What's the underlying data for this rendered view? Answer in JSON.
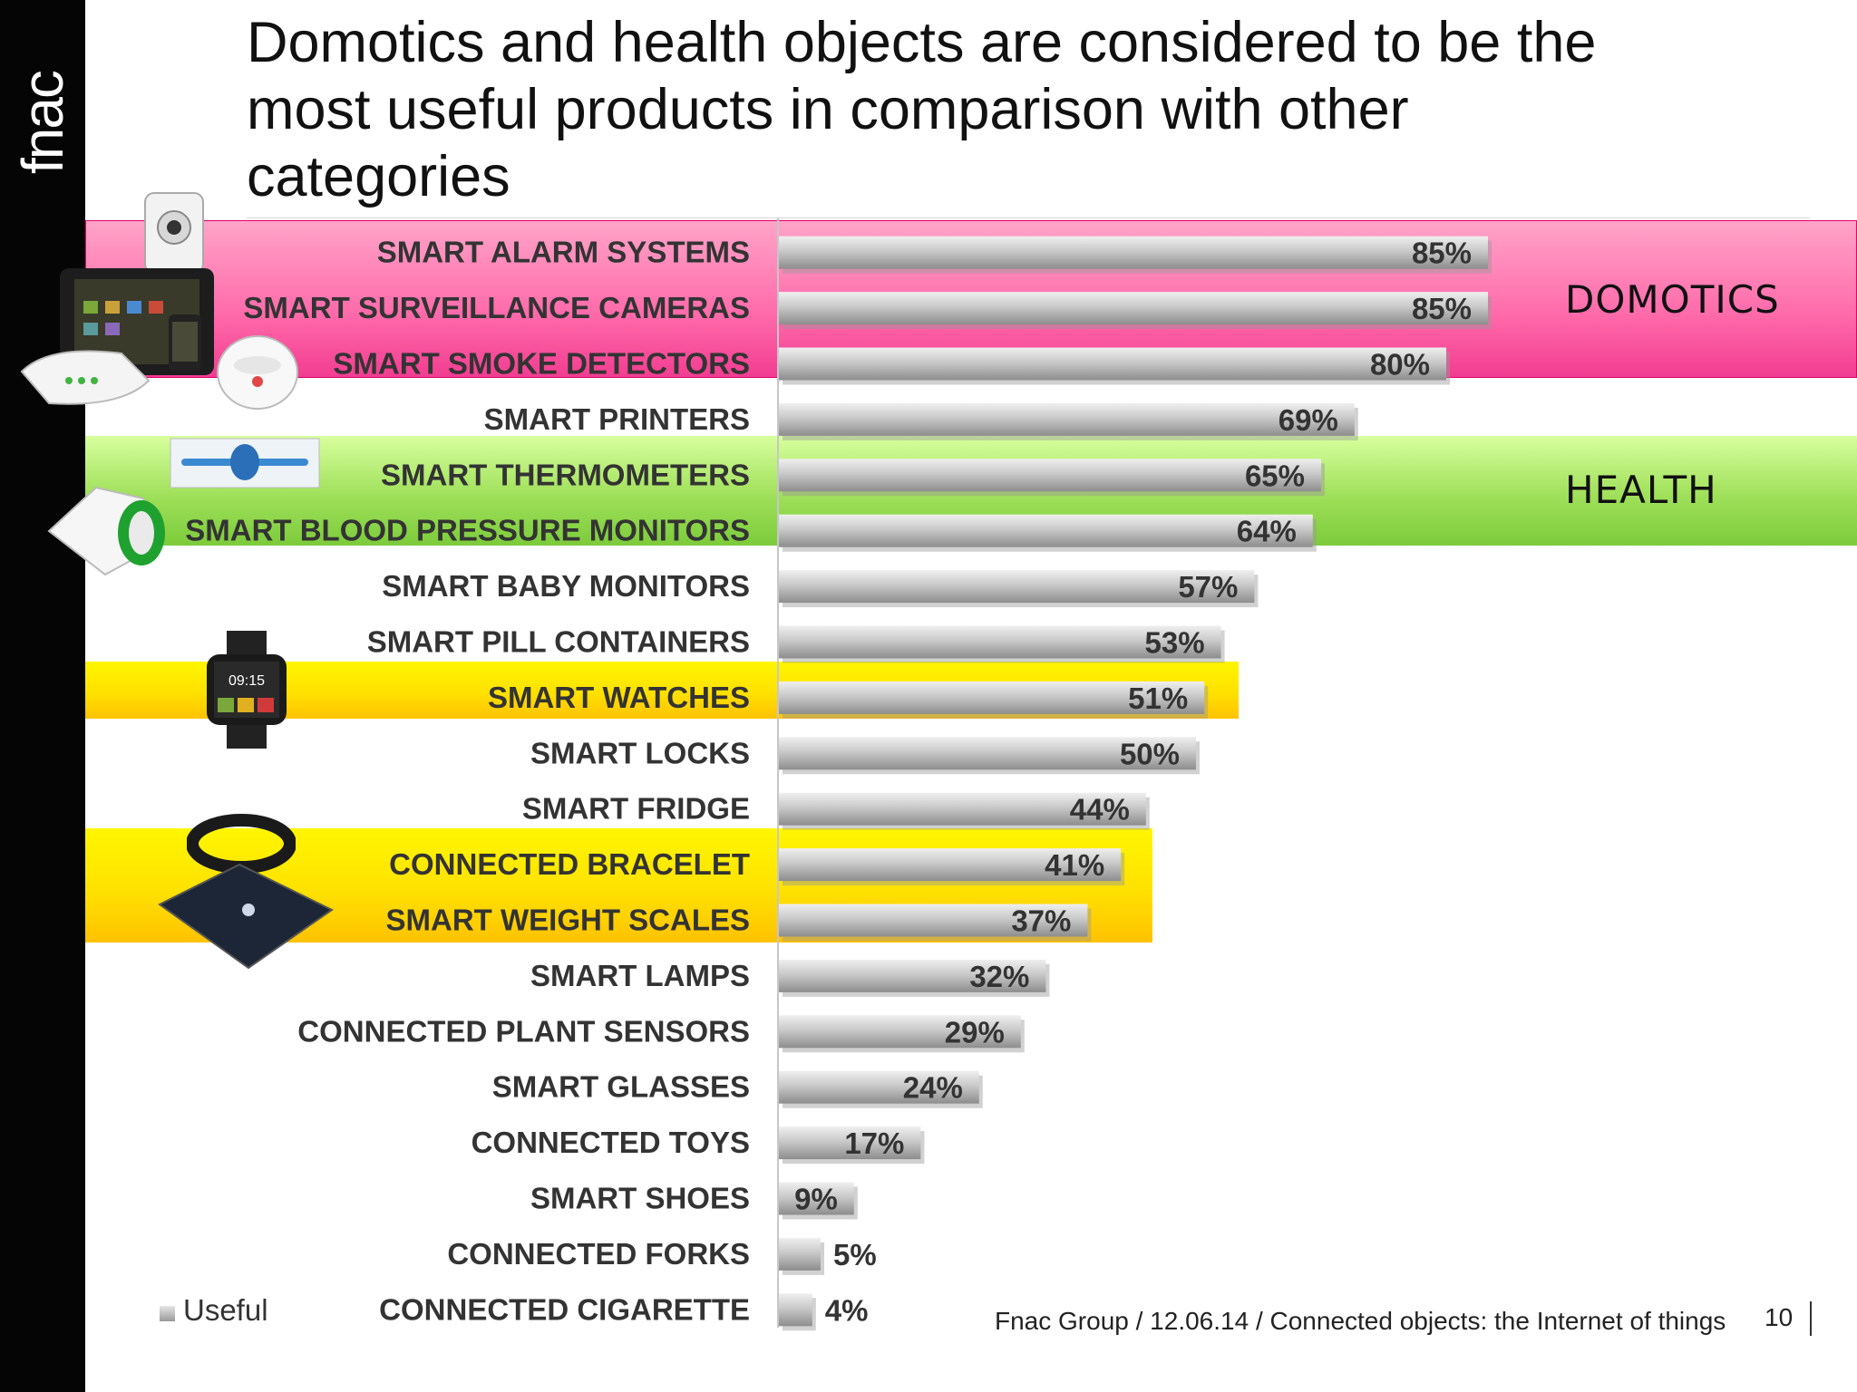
{
  "brand": {
    "logo_text": "fnac"
  },
  "title": "Domotics and health objects are considered to be the most useful products in comparison with other categories",
  "category_labels": {
    "domotics": "DOMOTICS",
    "health": "HEALTH"
  },
  "footer": {
    "source": "Fnac Group / 12.06.14 / Connected objects: the Internet of things",
    "page": "10"
  },
  "colors": {
    "domotics_band": "#ff6aaa",
    "health_band": "#9fe05a",
    "highlight_band": "#ffe100",
    "bar": "#b5b5b5",
    "background": "#ffffff",
    "sidebar": "#050505"
  },
  "icons": [
    "alarm-camera-icon",
    "tablet-icon",
    "phone-icon",
    "router-icon",
    "smoke-detector-icon",
    "thermometer-icon",
    "blood-pressure-monitor-icon",
    "smartwatch-icon",
    "bracelet-icon",
    "weight-scale-icon"
  ],
  "chart_data": {
    "type": "bar",
    "orientation": "horizontal",
    "categories": [
      "SMART ALARM SYSTEMS",
      "SMART SURVEILLANCE CAMERAS",
      "SMART SMOKE DETECTORS",
      "SMART PRINTERS",
      "SMART THERMOMETERS",
      "SMART BLOOD PRESSURE MONITORS",
      "SMART BABY MONITORS",
      "SMART PILL CONTAINERS",
      "SMART WATCHES",
      "SMART LOCKS",
      "SMART FRIDGE",
      "CONNECTED BRACELET",
      "SMART WEIGHT SCALES",
      "SMART LAMPS",
      "CONNECTED PLANT SENSORS",
      "SMART GLASSES",
      "CONNECTED TOYS",
      "SMART SHOES",
      "CONNECTED FORKS",
      "CONNECTED CIGARETTE"
    ],
    "series": [
      {
        "name": "Useful",
        "values": [
          85,
          85,
          80,
          69,
          65,
          64,
          57,
          53,
          51,
          50,
          44,
          41,
          37,
          32,
          29,
          24,
          17,
          9,
          5,
          4
        ]
      }
    ],
    "value_labels": [
      "85%",
      "85%",
      "80%",
      "69%",
      "65%",
      "64%",
      "57%",
      "53%",
      "51%",
      "50%",
      "44%",
      "41%",
      "37%",
      "32%",
      "29%",
      "24%",
      "17%",
      "9%",
      "5%",
      "4%"
    ],
    "xlim": [
      0,
      100
    ],
    "legend": "bottom-left",
    "grid": false
  }
}
